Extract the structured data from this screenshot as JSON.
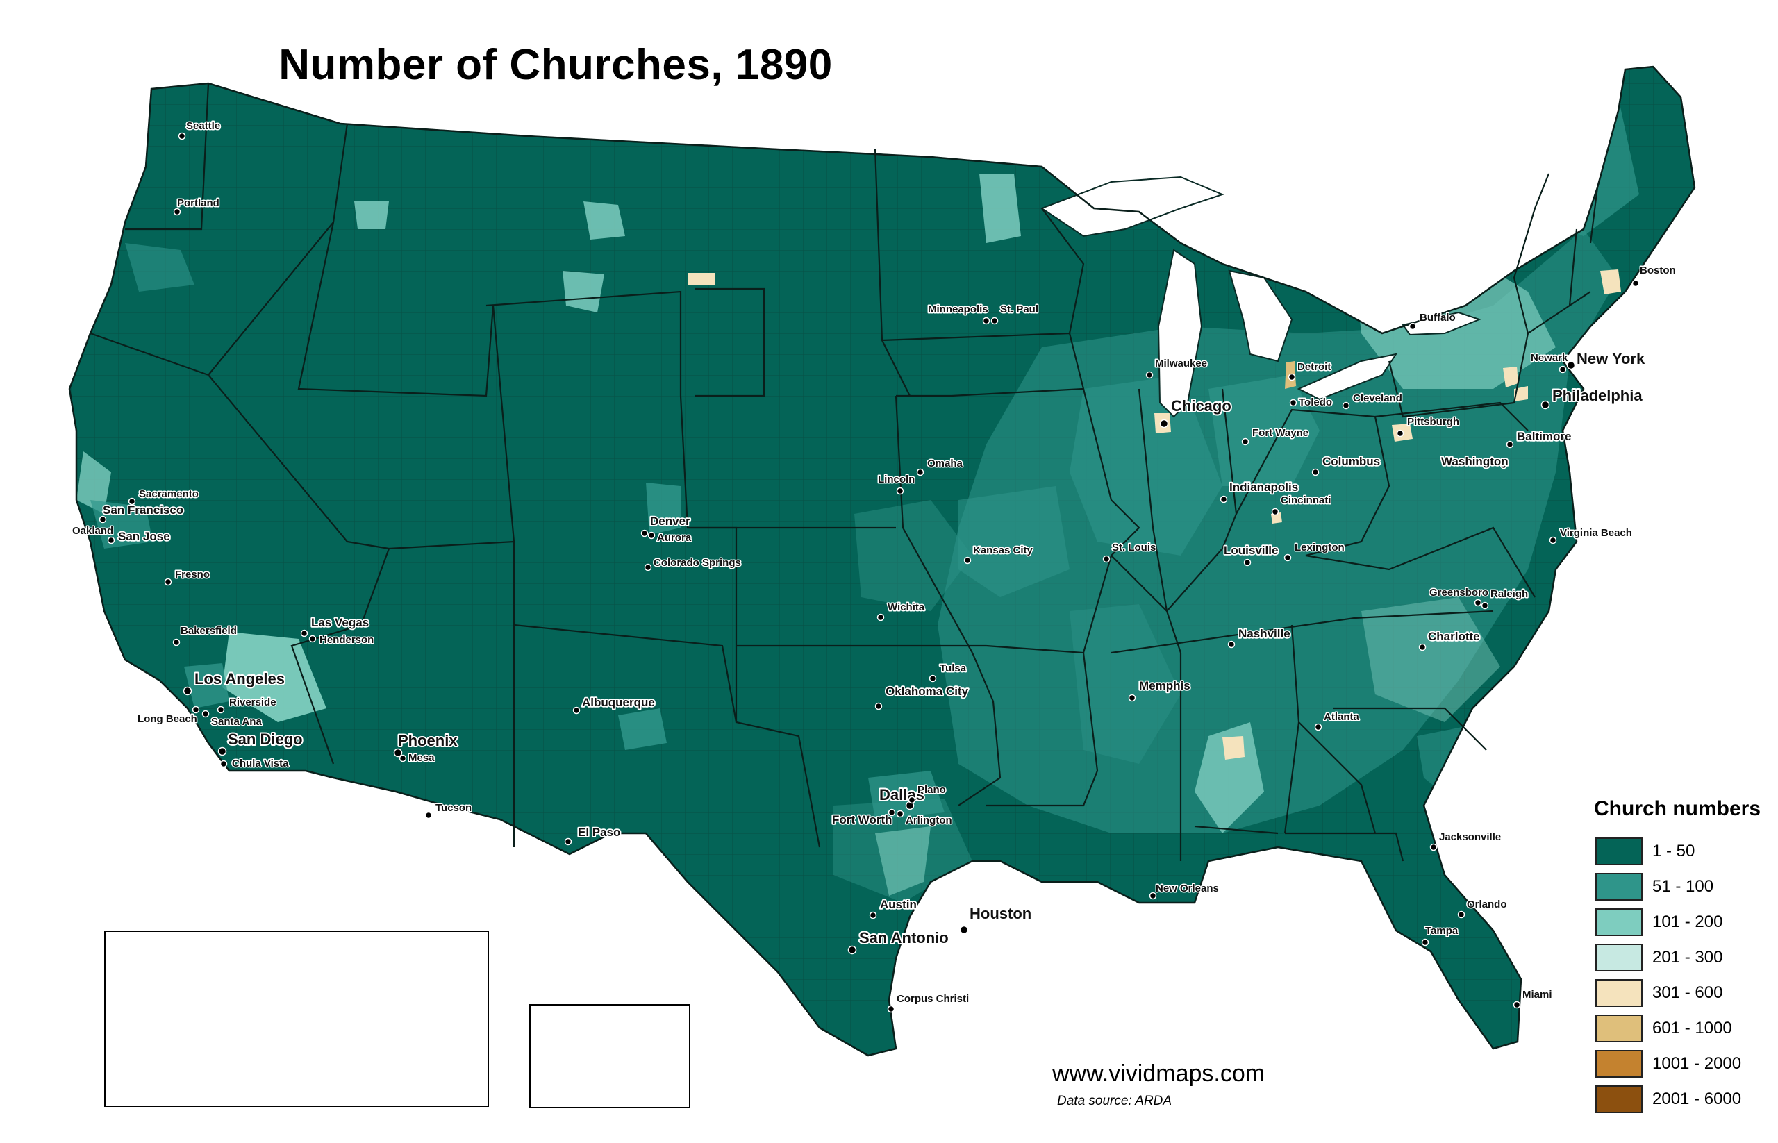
{
  "title": "Number of Churches, 1890",
  "colors": {
    "land_base": "#046457",
    "border": "#0a2a25",
    "c1_50": "#046457",
    "c51_100": "#2f958a",
    "c101_200": "#7ecdbf",
    "c201_300": "#c7e9e2",
    "c301_600": "#f5e3bd",
    "c601_1000": "#dfbf7b",
    "c1001_2000": "#c4822f",
    "c2001_6000": "#8c500f"
  },
  "legend": {
    "title": "Church numbers",
    "items": [
      {
        "label": "1 - 50",
        "color": "#046457"
      },
      {
        "label": "51 - 100",
        "color": "#2f958a"
      },
      {
        "label": "101 - 200",
        "color": "#7ecdbf"
      },
      {
        "label": "201 - 300",
        "color": "#c7e9e2"
      },
      {
        "label": "301 - 600",
        "color": "#f5e3bd"
      },
      {
        "label": "601 - 1000",
        "color": "#dfbf7b"
      },
      {
        "label": "1001 - 2000",
        "color": "#c4822f"
      },
      {
        "label": "2001 - 6000",
        "color": "#8c500f"
      }
    ]
  },
  "cities": [
    {
      "name": "Seattle",
      "size": "small"
    },
    {
      "name": "Portland",
      "size": "small"
    },
    {
      "name": "Sacramento",
      "size": "small"
    },
    {
      "name": "San Francisco",
      "size": "medium"
    },
    {
      "name": "Oakland",
      "size": "small"
    },
    {
      "name": "San Jose",
      "size": "medium"
    },
    {
      "name": "Fresno",
      "size": "small"
    },
    {
      "name": "Bakersfield",
      "size": "small"
    },
    {
      "name": "Las Vegas",
      "size": "medium"
    },
    {
      "name": "Henderson",
      "size": "small"
    },
    {
      "name": "Los Angeles",
      "size": "large"
    },
    {
      "name": "Riverside",
      "size": "small"
    },
    {
      "name": "Long Beach",
      "size": "small"
    },
    {
      "name": "Santa Ana",
      "size": "small"
    },
    {
      "name": "San Diego",
      "size": "large"
    },
    {
      "name": "Chula Vista",
      "size": "small"
    },
    {
      "name": "Phoenix",
      "size": "large"
    },
    {
      "name": "Mesa",
      "size": "small"
    },
    {
      "name": "Tucson",
      "size": "small"
    },
    {
      "name": "Albuquerque",
      "size": "medium"
    },
    {
      "name": "El Paso",
      "size": "medium"
    },
    {
      "name": "Denver",
      "size": "medium"
    },
    {
      "name": "Aurora",
      "size": "small"
    },
    {
      "name": "Colorado Springs",
      "size": "small"
    },
    {
      "name": "Minneapolis",
      "size": "small"
    },
    {
      "name": "St. Paul",
      "size": "small"
    },
    {
      "name": "Omaha",
      "size": "small"
    },
    {
      "name": "Lincoln",
      "size": "small"
    },
    {
      "name": "Kansas City",
      "size": "small"
    },
    {
      "name": "Wichita",
      "size": "small"
    },
    {
      "name": "Tulsa",
      "size": "small"
    },
    {
      "name": "Oklahoma City",
      "size": "medium"
    },
    {
      "name": "Dallas",
      "size": "large"
    },
    {
      "name": "Plano",
      "size": "small"
    },
    {
      "name": "Fort Worth",
      "size": "medium"
    },
    {
      "name": "Arlington",
      "size": "small"
    },
    {
      "name": "Austin",
      "size": "medium"
    },
    {
      "name": "San Antonio",
      "size": "large"
    },
    {
      "name": "Houston",
      "size": "large"
    },
    {
      "name": "Corpus Christi",
      "size": "small"
    },
    {
      "name": "Milwaukee",
      "size": "small"
    },
    {
      "name": "Chicago",
      "size": "large"
    },
    {
      "name": "Detroit",
      "size": "small"
    },
    {
      "name": "Toledo",
      "size": "small"
    },
    {
      "name": "Cleveland",
      "size": "small"
    },
    {
      "name": "Fort Wayne",
      "size": "small"
    },
    {
      "name": "Columbus",
      "size": "medium"
    },
    {
      "name": "Indianapolis",
      "size": "medium"
    },
    {
      "name": "Cincinnati",
      "size": "small"
    },
    {
      "name": "St. Louis",
      "size": "small"
    },
    {
      "name": "Louisville",
      "size": "medium"
    },
    {
      "name": "Lexington",
      "size": "small"
    },
    {
      "name": "Nashville",
      "size": "medium"
    },
    {
      "name": "Memphis",
      "size": "medium"
    },
    {
      "name": "New Orleans",
      "size": "small"
    },
    {
      "name": "Atlanta",
      "size": "small"
    },
    {
      "name": "Jacksonville",
      "size": "small"
    },
    {
      "name": "Orlando",
      "size": "small"
    },
    {
      "name": "Tampa",
      "size": "small"
    },
    {
      "name": "Miami",
      "size": "small"
    },
    {
      "name": "Charlotte",
      "size": "medium"
    },
    {
      "name": "Greensboro",
      "size": "small"
    },
    {
      "name": "Raleigh",
      "size": "small"
    },
    {
      "name": "Virginia Beach",
      "size": "small"
    },
    {
      "name": "Washington",
      "size": "medium"
    },
    {
      "name": "Baltimore",
      "size": "medium"
    },
    {
      "name": "Philadelphia",
      "size": "large"
    },
    {
      "name": "Pittsburgh",
      "size": "small"
    },
    {
      "name": "Newark",
      "size": "small"
    },
    {
      "name": "New York",
      "size": "large"
    },
    {
      "name": "Buffalo",
      "size": "small"
    },
    {
      "name": "Boston",
      "size": "small"
    }
  ],
  "footer": {
    "website": "www.vividmaps.com",
    "source": "Data source: ARDA"
  }
}
